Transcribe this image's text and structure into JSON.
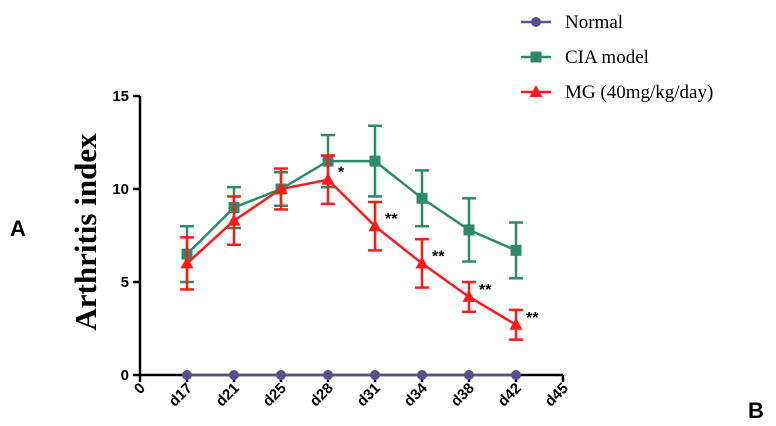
{
  "panel_labels": {
    "left": "A",
    "bottom_right": "B"
  },
  "chart_data": {
    "type": "line",
    "ylabel": "Arthritis index",
    "xlabel": "",
    "x_ticks": [
      "0",
      "d17",
      "d21",
      "d25",
      "d28",
      "d31",
      "d34",
      "d38",
      "d42",
      "d45"
    ],
    "x": [
      "d17",
      "d21",
      "d25",
      "d28",
      "d31",
      "d34",
      "d38",
      "d42"
    ],
    "ylim": [
      0,
      15
    ],
    "y_ticks": [
      0,
      5,
      10,
      15
    ],
    "grid": false,
    "legend_position": "top-right",
    "series": [
      {
        "name": "Normal",
        "color": "#5a4f8c",
        "marker": "circle",
        "values": [
          0,
          0,
          0,
          0,
          0,
          0,
          0,
          0
        ],
        "errors": [
          0,
          0,
          0,
          0,
          0,
          0,
          0,
          0
        ]
      },
      {
        "name": "CIA model",
        "color": "#2e8b68",
        "marker": "square",
        "values": [
          6.5,
          9.0,
          10.0,
          11.5,
          11.5,
          9.5,
          7.8,
          6.7
        ],
        "errors": [
          1.5,
          1.1,
          0.9,
          1.4,
          1.9,
          1.5,
          1.7,
          1.5
        ]
      },
      {
        "name": "MG (40mg/kg/day)",
        "color": "#ff1a1a",
        "marker": "triangle",
        "values": [
          6.0,
          8.3,
          10.0,
          10.5,
          8.0,
          6.0,
          4.2,
          2.7
        ],
        "errors": [
          1.4,
          1.3,
          1.1,
          1.3,
          1.3,
          1.3,
          0.8,
          0.8
        ]
      }
    ],
    "annotations": [
      {
        "x": "d28",
        "text": "*"
      },
      {
        "x": "d31",
        "text": "**"
      },
      {
        "x": "d34",
        "text": "**"
      },
      {
        "x": "d38",
        "text": "**"
      },
      {
        "x": "d42",
        "text": "**"
      }
    ]
  }
}
